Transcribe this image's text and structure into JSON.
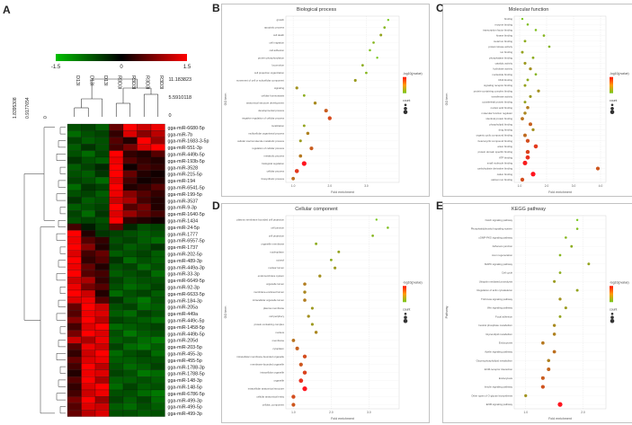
{
  "letters": {
    "a": "A",
    "b": "B",
    "c": "C",
    "d": "D",
    "e": "E"
  },
  "heatmap": {
    "colorbar_ticks": [
      "-1.5",
      "0",
      "1.5"
    ],
    "dendro_labels": [
      "11.183823",
      "5.5910118",
      "0"
    ],
    "rowdend_labels": [
      "1.8395308",
      "0.9177654",
      "0"
    ],
    "samples": [
      "D13I",
      "D13I",
      "D13I",
      "R3D3I",
      "R3D3I",
      "R3D3I",
      "R3D3I"
    ],
    "rows": [
      "gga-miR-6680-5p",
      "gga-miR-7b",
      "gga-miR-1683-3-5p",
      "gga-miR-551-3p",
      "gga-miR-449b-5p",
      "gga-miR-193b-5p",
      "gga-miR-3528",
      "gga-miR-215-5p",
      "gga-miR-194",
      "gga-miR-6541-5p",
      "gga-miR-199-5p",
      "gga-miR-3537",
      "gga-miR-9-3p",
      "gga-miR-1640-5p",
      "gga-miR-1434",
      "gga-miR-24-5p",
      "gga-miR-1777",
      "gga-miR-6557-5p",
      "gga-miR-1737",
      "gga-miR-202-5p",
      "gga-miR-489-3p",
      "gga-miR-449a-3p",
      "gga-miR-33-3p",
      "gga-miR-6649-5p",
      "gga-miR-92-3p",
      "gga-miR-6633-5p",
      "gga-miR-184-3p",
      "gga-miR-205a",
      "gga-miR-449a",
      "gga-miR-449c-5p",
      "gga-miR-1458-5p",
      "gga-miR-449b-5p",
      "gga-miR-205d",
      "gga-miR-203-5p",
      "gga-miR-455-3p",
      "gga-miR-455-5p",
      "gga-miR-1788-3p",
      "gga-miR-1788-5p",
      "gga-miR-148-3p",
      "gga-miR-148-5p",
      "gga-miR-6786-5p",
      "gga-miR-499-3p",
      "gga-miR-499-5p",
      "gga-miR-499-3p"
    ]
  },
  "panelB": {
    "title": "Biological process",
    "yaxis": "GO term",
    "xaxis": "Fold enrichment",
    "legend_title": "-log10(pvalue)",
    "legend_count": "count",
    "terms": [
      "growth",
      "apoptotic process",
      "cell death",
      "cell migration",
      "cell adhesion",
      "protein phosphorylation",
      "locomotion",
      "cell projection organization",
      "movement of cell or subcellular component",
      "signaling",
      "cellular homeostasis",
      "anatomical structure development",
      "developmental process",
      "negative regulation of cellular process",
      "localization",
      "multicellular organismal process",
      "cellular macromolecule metabolic process",
      "regulation of cellular process",
      "metabolic process",
      "biological regulation",
      "cellular process",
      "biosynthetic process"
    ],
    "fold": [
      3.6,
      3.5,
      3.4,
      3.2,
      3.1,
      3.3,
      2.9,
      3.0,
      2.7,
      1.1,
      1.3,
      1.6,
      1.9,
      2.0,
      1.3,
      1.4,
      1.2,
      1.5,
      1.2,
      1.3,
      1.1,
      1.0
    ],
    "pval": [
      1.0,
      1.2,
      1.4,
      1.2,
      1.1,
      1.0,
      1.3,
      1.2,
      1.5,
      1.6,
      1.3,
      1.7,
      2.2,
      2.4,
      1.4,
      1.8,
      1.5,
      2.2,
      1.9,
      3.0,
      2.6,
      2.0
    ]
  },
  "panelC": {
    "title": "Molecular function",
    "yaxis": "GO term",
    "xaxis": "Fold enrichment",
    "legend_title": "-log10(pvalue)",
    "legend_count": "count",
    "terms": [
      "binding",
      "enzyme binding",
      "transcription factor binding",
      "kinase binding",
      "metal ion binding",
      "protein kinase activity",
      "ion binding",
      "phosphatase binding",
      "catalytic activity",
      "hydrolase activity",
      "nucleotide binding",
      "DNA binding",
      "signaling receptor binding",
      "protein-containing complex binding",
      "transferase activity",
      "cytoskeletal protein binding",
      "nucleic acid binding",
      "molecular function regulator",
      "identical protein binding",
      "phospholipid binding",
      "drug binding",
      "organic cyclic compound binding",
      "heterocyclic compound binding",
      "anion binding",
      "protein domain specific binding",
      "ATP binding",
      "small molecule binding",
      "carbohydrate derivative binding",
      "cation binding",
      "calcium ion binding"
    ],
    "fold": [
      1.1,
      1.3,
      1.6,
      1.9,
      1.2,
      2.1,
      1.1,
      1.5,
      1.2,
      1.4,
      1.6,
      1.3,
      1.2,
      1.7,
      1.4,
      1.2,
      1.3,
      1.2,
      1.1,
      1.4,
      1.5,
      1.2,
      1.3,
      1.6,
      1.3,
      1.3,
      1.2,
      3.9,
      1.5,
      1.1
    ],
    "pval": [
      1.0,
      1.1,
      1.1,
      1.2,
      1.3,
      1.2,
      1.4,
      1.3,
      1.5,
      1.6,
      1.2,
      1.3,
      1.4,
      1.6,
      1.5,
      1.4,
      1.8,
      1.7,
      1.9,
      2.1,
      1.6,
      2.0,
      2.3,
      2.5,
      2.4,
      2.6,
      2.8,
      2.2,
      2.9,
      2.3
    ]
  },
  "panelD": {
    "title": "Cellular component",
    "yaxis": "GO term",
    "xaxis": "Fold enrichment",
    "legend_title": "-log10(pvalue)",
    "legend_count": "count",
    "terms": [
      "plasma membrane bounded cell projection",
      "cell junction",
      "cell projection",
      "organelle membrane",
      "nucleoplasm",
      "cytosol",
      "nuclear lumen",
      "endomembrane system",
      "organelle lumen",
      "membrane-enclosed lumen",
      "intracellular organelle lumen",
      "plasma membrane",
      "cell periphery",
      "protein-containing complex",
      "nucleus",
      "membrane",
      "cytoplasm",
      "intracellular membrane-bounded organelle",
      "membrane-bounded organelle",
      "intracellular organelle",
      "organelle",
      "intracellular anatomical structure",
      "cellular anatomical entity",
      "cellular_component"
    ],
    "fold": [
      3.2,
      3.5,
      3.1,
      1.6,
      2.2,
      2.0,
      2.1,
      1.7,
      1.3,
      1.3,
      1.3,
      1.5,
      1.4,
      1.5,
      1.6,
      1.0,
      1.1,
      1.3,
      1.2,
      1.3,
      1.2,
      1.3,
      1.0,
      1.0
    ],
    "pval": [
      1.0,
      1.1,
      1.2,
      1.3,
      1.4,
      1.3,
      1.5,
      1.6,
      1.8,
      1.7,
      1.8,
      1.5,
      1.6,
      1.5,
      1.7,
      1.9,
      2.1,
      2.3,
      2.2,
      2.4,
      2.6,
      2.9,
      2.3,
      2.2
    ]
  },
  "panelE": {
    "title": "KEGG pathway",
    "yaxis": "Pathway",
    "xaxis": "Fold enrichment",
    "legend_title": "-log10(pvalue)",
    "legend_count": "count",
    "terms": [
      "Notch signaling pathway",
      "Phosphatidylinositol signaling system",
      "cGMP-PKG signaling pathway",
      "Adherens junction",
      "Axon regeneration",
      "MAPK signaling pathway",
      "Cell cycle",
      "Ubiquitin mediated proteolysis",
      "Regulation of actin cytoskeleton",
      "TGF-beta signaling pathway",
      "Wnt signaling pathway",
      "Focal adhesion",
      "Inositol phosphate metabolism",
      "Glycerolipid metabolism",
      "Endocytosis",
      "Apelin signaling pathway",
      "Glycerophospholipid metabolism",
      "ECM-receptor interaction",
      "Endocytosis",
      "Insulin signaling pathway",
      "Other types of O-glycan biosynthesis",
      "ErbB signaling pathway"
    ],
    "fold": [
      1.9,
      1.9,
      1.7,
      1.8,
      1.6,
      2.1,
      1.6,
      1.5,
      1.9,
      1.6,
      1.7,
      1.6,
      1.5,
      1.5,
      1.3,
      1.5,
      1.4,
      1.4,
      1.3,
      1.3,
      1.0,
      1.6
    ],
    "pval": [
      1.0,
      1.1,
      1.2,
      1.3,
      1.2,
      1.4,
      1.3,
      1.5,
      1.4,
      1.6,
      1.5,
      1.4,
      1.7,
      1.8,
      1.9,
      2.0,
      1.8,
      2.1,
      2.2,
      2.3,
      1.6,
      3.0
    ]
  }
}
